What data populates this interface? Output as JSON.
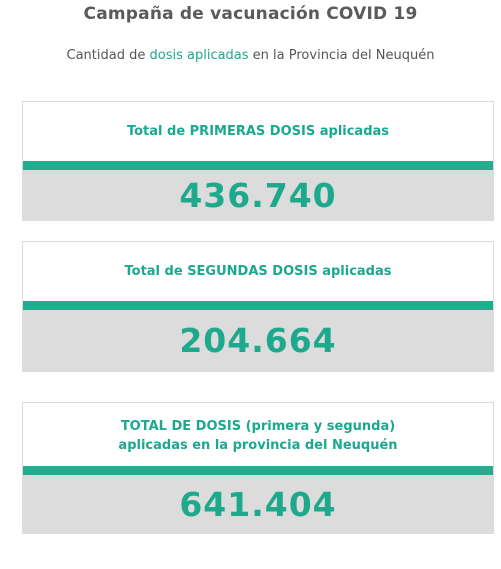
{
  "header": {
    "title": "Campaña de vacunación COVID 19",
    "subtitle_pre": "Cantidad de ",
    "subtitle_highlight": "dosis aplicadas",
    "subtitle_post": " en la Provincia del Neuquén"
  },
  "cards": [
    {
      "label": "Total de PRIMERAS DOSIS aplicadas",
      "value": "436.740"
    },
    {
      "label": "Total de SEGUNDAS DOSIS aplicadas",
      "value": "204.664"
    },
    {
      "label_line1": "TOTAL DE DOSIS (primera y segunda)",
      "label_line2": "aplicadas en la provincia del Neuquén",
      "value": "641.404"
    }
  ],
  "colors": {
    "accent": "#1aa88e",
    "bar": "#22ad8f",
    "value_bg": "#dcdcdc",
    "title": "#5a5a5a"
  }
}
